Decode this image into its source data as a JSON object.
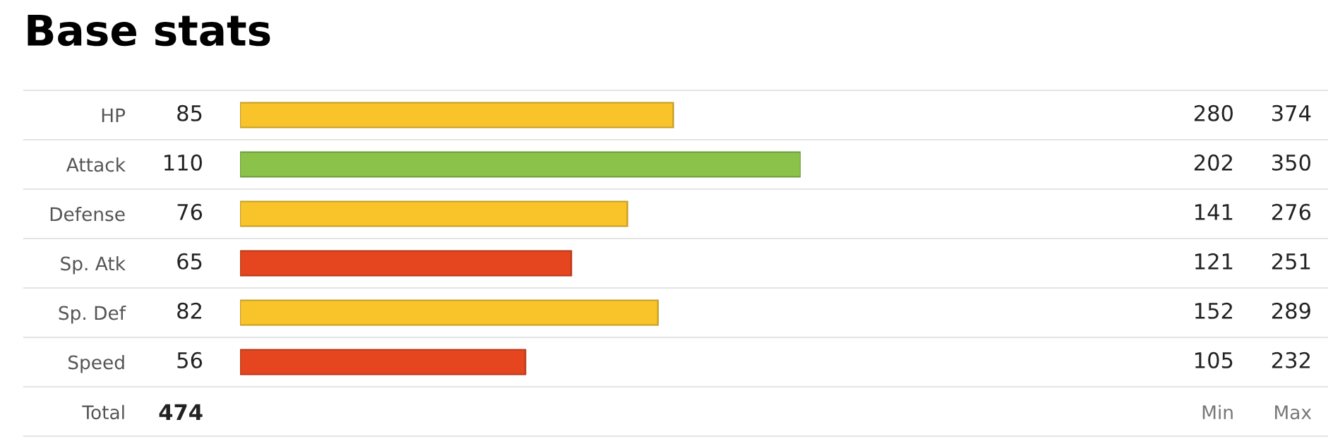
{
  "chart_data": [
    {
      "type": "bar",
      "orientation": "horizontal",
      "title": "Base stats",
      "categories": [
        "HP",
        "Attack",
        "Defense",
        "Sp. Atk",
        "Sp. Def",
        "Speed"
      ],
      "values": [
        85,
        110,
        76,
        65,
        82,
        56
      ],
      "colors": [
        "#f8c42a",
        "#8bc34a",
        "#f8c42a",
        "#e5461f",
        "#f8c42a",
        "#e5461f"
      ],
      "data_labels": true,
      "annotations": [
        "Total",
        "474"
      ],
      "tick_labels": "y"
    },
    {
      "type": "other",
      "xlabel": "Min",
      "values": [
        280,
        202,
        141,
        121,
        152,
        105
      ],
      "data_labels": true
    },
    {
      "type": "other",
      "xlabel": "Max",
      "values": [
        374,
        350,
        276,
        251,
        289,
        232
      ],
      "data_labels": true
    }
  ]
}
